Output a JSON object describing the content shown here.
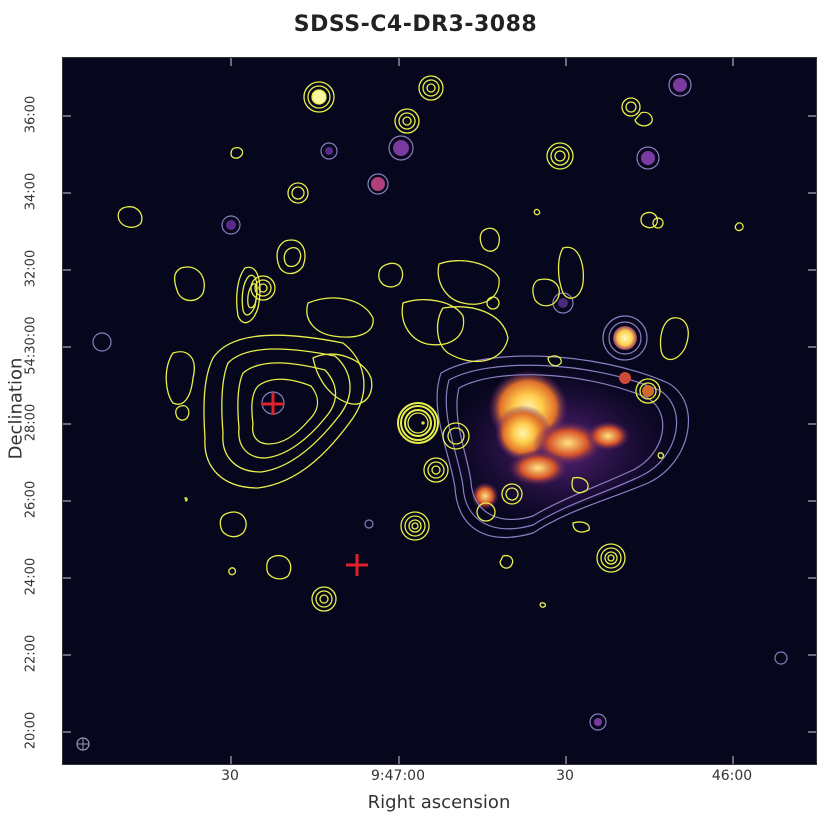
{
  "title": "SDSS-C4-DR3-3088",
  "axes": {
    "xlabel": "Right ascension",
    "ylabel": "Declination",
    "x_ticks": [
      "30",
      "9:47:00",
      "30",
      "46:00"
    ],
    "y_ticks": [
      "36:00",
      "34:00",
      "32:00",
      "54:30:00",
      "28:00",
      "26:00",
      "24:00",
      "22:00",
      "20:00"
    ]
  },
  "colors": {
    "background": "#06061c",
    "radio_contours": "#e8f04a",
    "xray_contours": "#8a7fc0",
    "marker": "#e0202a",
    "emission_core": "#ffe27a",
    "emission_mid": "#e07a2a",
    "emission_outer": "#5a1f7a"
  }
}
